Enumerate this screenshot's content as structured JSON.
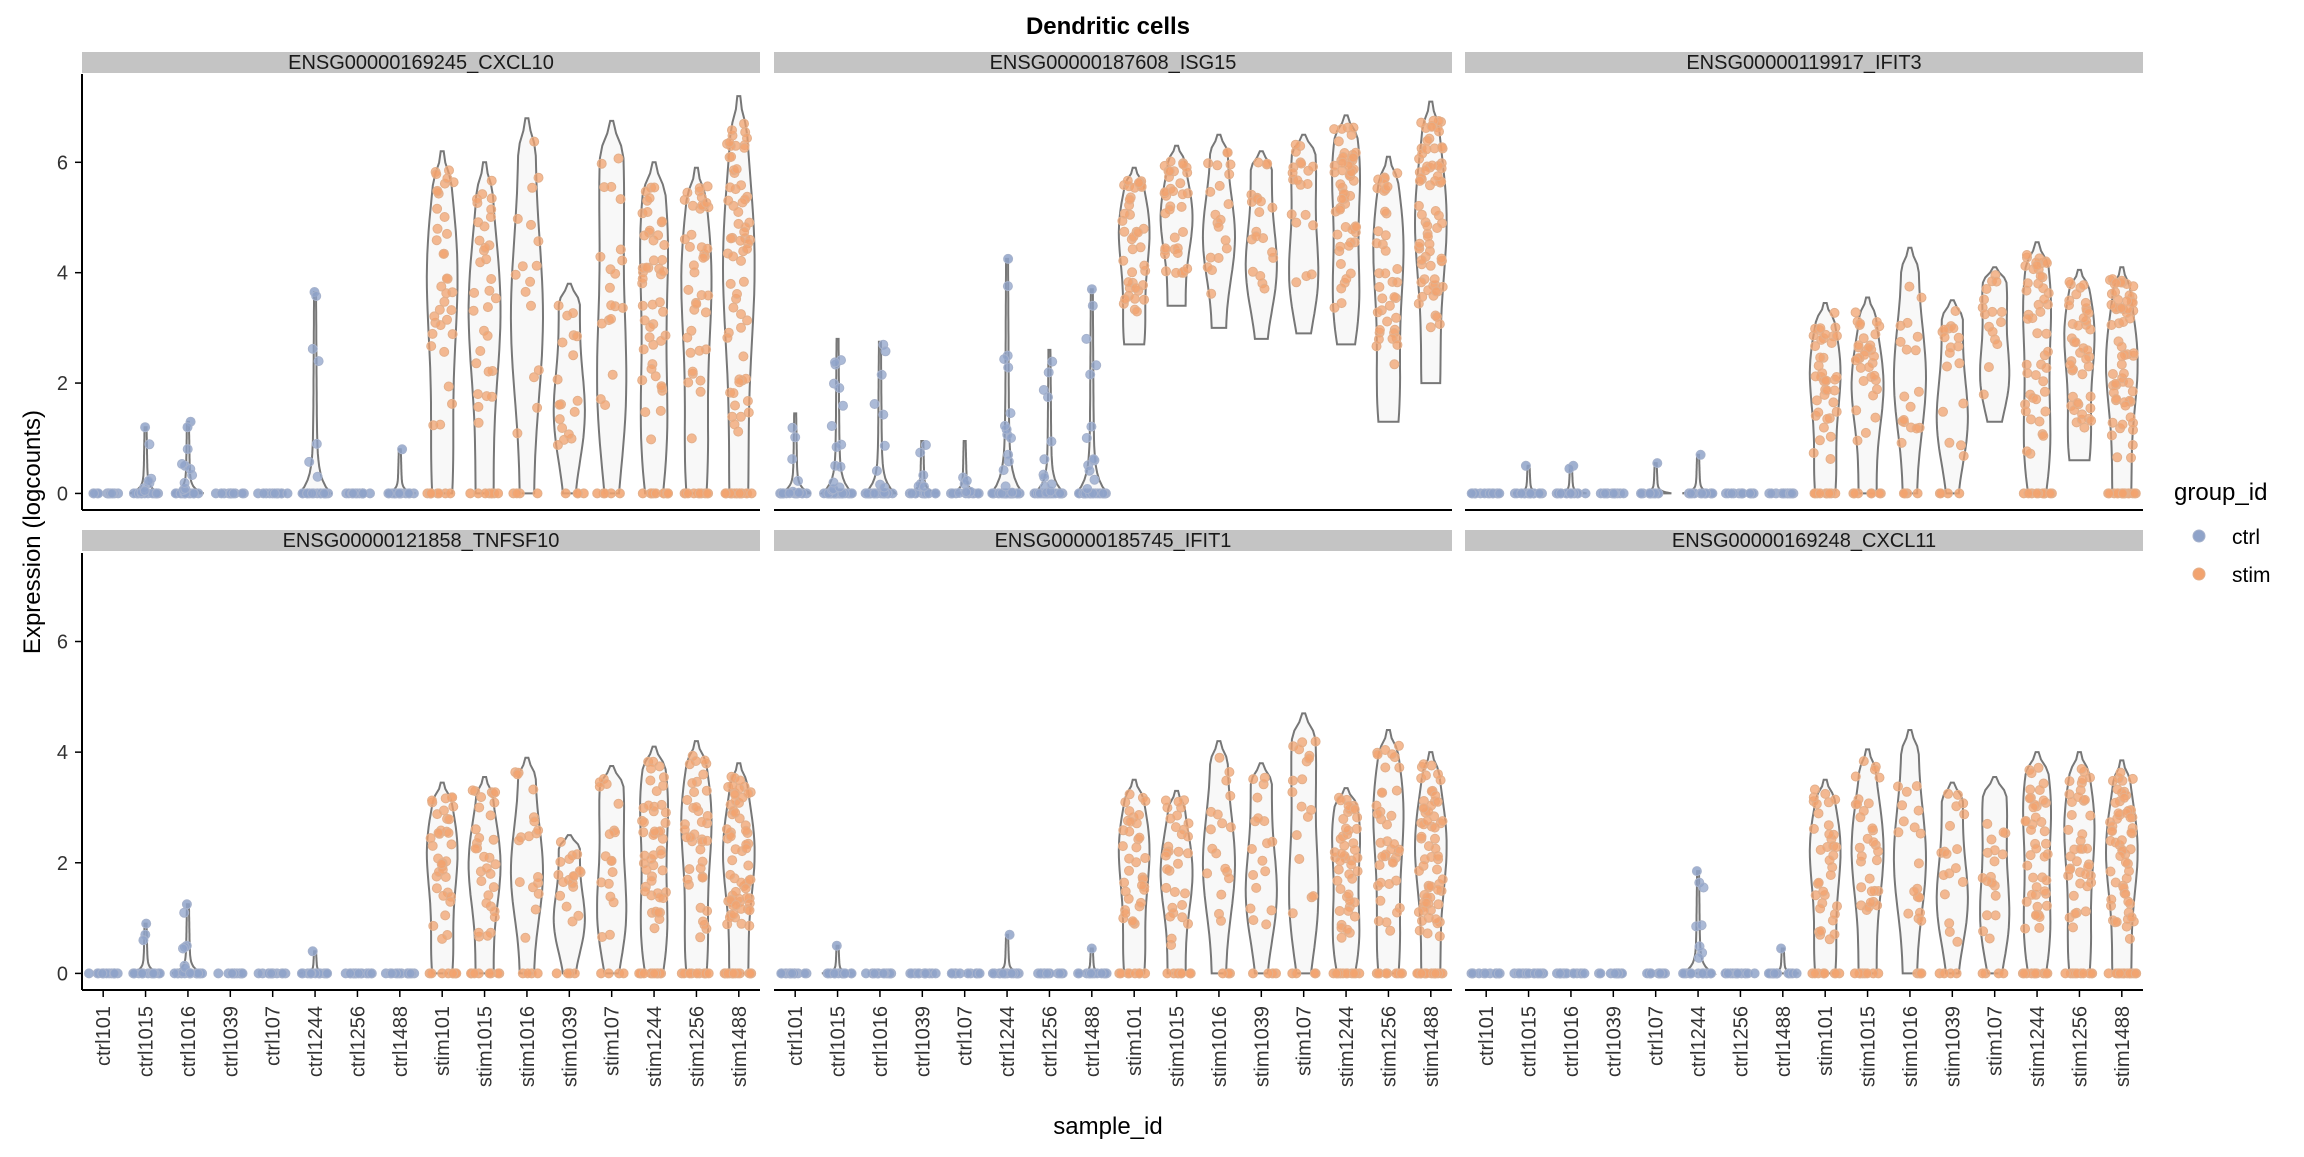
{
  "chart_data": {
    "type": "violin",
    "title": "Dendritic cells",
    "xlabel": "sample_id",
    "ylabel": "Expression (logcounts)",
    "ylim": [
      -0.3,
      7.6
    ],
    "y_ticks": [
      0,
      2,
      4,
      6
    ],
    "grid": false,
    "legend": {
      "title": "group_id",
      "position": "right",
      "entries": [
        {
          "name": "ctrl",
          "color": "#8FA3C9"
        },
        {
          "name": "stim",
          "color": "#F2A36F"
        }
      ]
    },
    "categories": [
      "ctrl101",
      "ctrl1015",
      "ctrl1016",
      "ctrl1039",
      "ctrl107",
      "ctrl1244",
      "ctrl1256",
      "ctrl1488",
      "stim101",
      "stim1015",
      "stim1016",
      "stim1039",
      "stim107",
      "stim1244",
      "stim1256",
      "stim1488"
    ],
    "panels": [
      {
        "strip": "ENSG00000169245_CXCL10",
        "violins": [
          {
            "sample": "ctrl101",
            "min": 0,
            "max": 0,
            "n": 14,
            "points": []
          },
          {
            "sample": "ctrl1015",
            "min": 0,
            "max": 1.2,
            "n": 14,
            "points": [
              1.2
            ]
          },
          {
            "sample": "ctrl1016",
            "min": 0,
            "max": 1.3,
            "n": 14,
            "points": [
              1.3,
              1.2,
              0.5
            ]
          },
          {
            "sample": "ctrl1039",
            "min": 0,
            "max": 0,
            "n": 12,
            "points": []
          },
          {
            "sample": "ctrl107",
            "min": 0,
            "max": 0,
            "n": 12,
            "points": []
          },
          {
            "sample": "ctrl1244",
            "min": 0,
            "max": 3.65,
            "n": 14,
            "points": [
              3.65
            ]
          },
          {
            "sample": "ctrl1256",
            "min": 0,
            "max": 0,
            "n": 14,
            "points": []
          },
          {
            "sample": "ctrl1488",
            "min": 0,
            "max": 0.8,
            "n": 14,
            "points": [
              0.8
            ]
          },
          {
            "sample": "stim101",
            "min": 0,
            "max": 6.2,
            "n": 45,
            "points": []
          },
          {
            "sample": "stim1015",
            "min": 0,
            "max": 6.0,
            "n": 40,
            "points": []
          },
          {
            "sample": "stim1016",
            "min": 0,
            "max": 6.8,
            "n": 20,
            "points": []
          },
          {
            "sample": "stim1039",
            "min": 0,
            "max": 3.8,
            "n": 22,
            "points": []
          },
          {
            "sample": "stim107",
            "min": 0,
            "max": 6.75,
            "n": 25,
            "points": []
          },
          {
            "sample": "stim1244",
            "min": 0,
            "max": 6.0,
            "n": 60,
            "points": []
          },
          {
            "sample": "stim1256",
            "min": 0,
            "max": 5.9,
            "n": 50,
            "points": []
          },
          {
            "sample": "stim1488",
            "min": 0,
            "max": 7.2,
            "n": 80,
            "points": []
          }
        ]
      },
      {
        "strip": "ENSG00000187608_ISG15",
        "violins": [
          {
            "sample": "ctrl101",
            "min": 0,
            "max": 1.45,
            "n": 16,
            "points": []
          },
          {
            "sample": "ctrl1015",
            "min": 0,
            "max": 2.8,
            "n": 30,
            "points": []
          },
          {
            "sample": "ctrl1016",
            "min": 0,
            "max": 2.75,
            "n": 22,
            "points": []
          },
          {
            "sample": "ctrl1039",
            "min": 0,
            "max": 0.95,
            "n": 12,
            "points": []
          },
          {
            "sample": "ctrl107",
            "min": 0,
            "max": 0.95,
            "n": 12,
            "points": []
          },
          {
            "sample": "ctrl1244",
            "min": 0,
            "max": 4.25,
            "n": 28,
            "points": [
              4.25
            ]
          },
          {
            "sample": "ctrl1256",
            "min": 0,
            "max": 2.6,
            "n": 24,
            "points": []
          },
          {
            "sample": "ctrl1488",
            "min": 0,
            "max": 3.7,
            "n": 24,
            "points": [
              3.7
            ]
          },
          {
            "sample": "stim101",
            "min": 2.7,
            "max": 5.9,
            "n": 50,
            "points": []
          },
          {
            "sample": "stim1015",
            "min": 3.4,
            "max": 6.3,
            "n": 45,
            "points": []
          },
          {
            "sample": "stim1016",
            "min": 3.0,
            "max": 6.5,
            "n": 25,
            "points": []
          },
          {
            "sample": "stim1039",
            "min": 2.8,
            "max": 6.2,
            "n": 25,
            "points": []
          },
          {
            "sample": "stim107",
            "min": 2.9,
            "max": 6.5,
            "n": 25,
            "points": []
          },
          {
            "sample": "stim1244",
            "min": 2.7,
            "max": 6.85,
            "n": 70,
            "points": []
          },
          {
            "sample": "stim1256",
            "min": 1.3,
            "max": 6.1,
            "n": 50,
            "points": []
          },
          {
            "sample": "stim1488",
            "min": 2.0,
            "max": 7.1,
            "n": 90,
            "points": []
          }
        ]
      },
      {
        "strip": "ENSG00000119917_IFIT3",
        "violins": [
          {
            "sample": "ctrl101",
            "min": 0,
            "max": 0,
            "n": 14,
            "points": []
          },
          {
            "sample": "ctrl1015",
            "min": 0,
            "max": 0.5,
            "n": 14,
            "points": [
              0.5
            ]
          },
          {
            "sample": "ctrl1016",
            "min": 0,
            "max": 0.5,
            "n": 14,
            "points": [
              0.5,
              0.45
            ]
          },
          {
            "sample": "ctrl1039",
            "min": 0,
            "max": 0,
            "n": 12,
            "points": []
          },
          {
            "sample": "ctrl107",
            "min": 0,
            "max": 0.55,
            "n": 12,
            "points": [
              0.55
            ]
          },
          {
            "sample": "ctrl1244",
            "min": 0,
            "max": 0.7,
            "n": 14,
            "points": [
              0.7
            ]
          },
          {
            "sample": "ctrl1256",
            "min": 0,
            "max": 0,
            "n": 14,
            "points": []
          },
          {
            "sample": "ctrl1488",
            "min": 0,
            "max": 0,
            "n": 14,
            "points": []
          },
          {
            "sample": "stim101",
            "min": 0,
            "max": 3.45,
            "n": 50,
            "points": []
          },
          {
            "sample": "stim1015",
            "min": 0,
            "max": 3.55,
            "n": 40,
            "points": []
          },
          {
            "sample": "stim1016",
            "min": 0,
            "max": 4.45,
            "n": 22,
            "points": []
          },
          {
            "sample": "stim1039",
            "min": 0,
            "max": 3.5,
            "n": 22,
            "points": []
          },
          {
            "sample": "stim107",
            "min": 1.3,
            "max": 4.1,
            "n": 20,
            "points": []
          },
          {
            "sample": "stim1244",
            "min": 0,
            "max": 4.55,
            "n": 60,
            "points": []
          },
          {
            "sample": "stim1256",
            "min": 0.6,
            "max": 4.05,
            "n": 55,
            "points": []
          },
          {
            "sample": "stim1488",
            "min": 0,
            "max": 4.1,
            "n": 80,
            "points": []
          }
        ]
      },
      {
        "strip": "ENSG00000121858_TNFSF10",
        "violins": [
          {
            "sample": "ctrl101",
            "min": 0,
            "max": 0,
            "n": 14,
            "points": []
          },
          {
            "sample": "ctrl1015",
            "min": 0,
            "max": 0.9,
            "n": 14,
            "points": [
              0.9,
              0.7,
              0.6
            ]
          },
          {
            "sample": "ctrl1016",
            "min": 0,
            "max": 1.25,
            "n": 14,
            "points": [
              1.25,
              0.5
            ]
          },
          {
            "sample": "ctrl1039",
            "min": 0,
            "max": 0,
            "n": 12,
            "points": []
          },
          {
            "sample": "ctrl107",
            "min": 0,
            "max": 0,
            "n": 12,
            "points": []
          },
          {
            "sample": "ctrl1244",
            "min": 0,
            "max": 0.4,
            "n": 14,
            "points": [
              0.4
            ]
          },
          {
            "sample": "ctrl1256",
            "min": 0,
            "max": 0,
            "n": 14,
            "points": []
          },
          {
            "sample": "ctrl1488",
            "min": 0,
            "max": 0,
            "n": 14,
            "points": []
          },
          {
            "sample": "stim101",
            "min": 0,
            "max": 3.45,
            "n": 45,
            "points": []
          },
          {
            "sample": "stim1015",
            "min": 0,
            "max": 3.55,
            "n": 40,
            "points": []
          },
          {
            "sample": "stim1016",
            "min": 0,
            "max": 3.9,
            "n": 22,
            "points": []
          },
          {
            "sample": "stim1039",
            "min": 0,
            "max": 2.5,
            "n": 22,
            "points": []
          },
          {
            "sample": "stim107",
            "min": 0,
            "max": 3.75,
            "n": 22,
            "points": []
          },
          {
            "sample": "stim1244",
            "min": 0,
            "max": 4.1,
            "n": 60,
            "points": []
          },
          {
            "sample": "stim1256",
            "min": 0,
            "max": 4.2,
            "n": 50,
            "points": []
          },
          {
            "sample": "stim1488",
            "min": 0,
            "max": 3.8,
            "n": 80,
            "points": []
          }
        ]
      },
      {
        "strip": "ENSG00000185745_IFIT1",
        "violins": [
          {
            "sample": "ctrl101",
            "min": 0,
            "max": 0,
            "n": 14,
            "points": []
          },
          {
            "sample": "ctrl1015",
            "min": 0,
            "max": 0.5,
            "n": 14,
            "points": [
              0.5
            ]
          },
          {
            "sample": "ctrl1016",
            "min": 0,
            "max": 0,
            "n": 14,
            "points": []
          },
          {
            "sample": "ctrl1039",
            "min": 0,
            "max": 0,
            "n": 12,
            "points": []
          },
          {
            "sample": "ctrl107",
            "min": 0,
            "max": 0,
            "n": 12,
            "points": []
          },
          {
            "sample": "ctrl1244",
            "min": 0,
            "max": 0.7,
            "n": 14,
            "points": [
              0.7
            ]
          },
          {
            "sample": "ctrl1256",
            "min": 0,
            "max": 0,
            "n": 14,
            "points": []
          },
          {
            "sample": "ctrl1488",
            "min": 0,
            "max": 0.45,
            "n": 14,
            "points": [
              0.45
            ]
          },
          {
            "sample": "stim101",
            "min": 0,
            "max": 3.5,
            "n": 45,
            "points": []
          },
          {
            "sample": "stim1015",
            "min": 0,
            "max": 3.3,
            "n": 40,
            "points": []
          },
          {
            "sample": "stim1016",
            "min": 0,
            "max": 4.2,
            "n": 22,
            "points": []
          },
          {
            "sample": "stim1039",
            "min": 0,
            "max": 3.8,
            "n": 22,
            "points": []
          },
          {
            "sample": "stim107",
            "min": 0,
            "max": 4.7,
            "n": 22,
            "points": []
          },
          {
            "sample": "stim1244",
            "min": 0,
            "max": 3.35,
            "n": 60,
            "points": []
          },
          {
            "sample": "stim1256",
            "min": 0,
            "max": 4.4,
            "n": 50,
            "points": []
          },
          {
            "sample": "stim1488",
            "min": 0,
            "max": 4.0,
            "n": 80,
            "points": []
          }
        ]
      },
      {
        "strip": "ENSG00000169248_CXCL11",
        "violins": [
          {
            "sample": "ctrl101",
            "min": 0,
            "max": 0,
            "n": 14,
            "points": []
          },
          {
            "sample": "ctrl1015",
            "min": 0,
            "max": 0,
            "n": 14,
            "points": []
          },
          {
            "sample": "ctrl1016",
            "min": 0,
            "max": 0,
            "n": 14,
            "points": []
          },
          {
            "sample": "ctrl1039",
            "min": 0,
            "max": 0,
            "n": 12,
            "points": []
          },
          {
            "sample": "ctrl107",
            "min": 0,
            "max": 0,
            "n": 12,
            "points": []
          },
          {
            "sample": "ctrl1244",
            "min": 0,
            "max": 1.85,
            "n": 14,
            "points": [
              1.85
            ]
          },
          {
            "sample": "ctrl1256",
            "min": 0,
            "max": 0,
            "n": 14,
            "points": []
          },
          {
            "sample": "ctrl1488",
            "min": 0,
            "max": 0.45,
            "n": 14,
            "points": [
              0.45
            ]
          },
          {
            "sample": "stim101",
            "min": 0,
            "max": 3.5,
            "n": 45,
            "points": []
          },
          {
            "sample": "stim1015",
            "min": 0,
            "max": 4.05,
            "n": 40,
            "points": []
          },
          {
            "sample": "stim1016",
            "min": 0,
            "max": 4.4,
            "n": 22,
            "points": []
          },
          {
            "sample": "stim1039",
            "min": 0,
            "max": 3.45,
            "n": 22,
            "points": []
          },
          {
            "sample": "stim107",
            "min": 0,
            "max": 3.55,
            "n": 22,
            "points": []
          },
          {
            "sample": "stim1244",
            "min": 0,
            "max": 4.0,
            "n": 55,
            "points": []
          },
          {
            "sample": "stim1256",
            "min": 0,
            "max": 4.0,
            "n": 50,
            "points": []
          },
          {
            "sample": "stim1488",
            "min": 0,
            "max": 3.85,
            "n": 75,
            "points": []
          }
        ]
      }
    ]
  }
}
